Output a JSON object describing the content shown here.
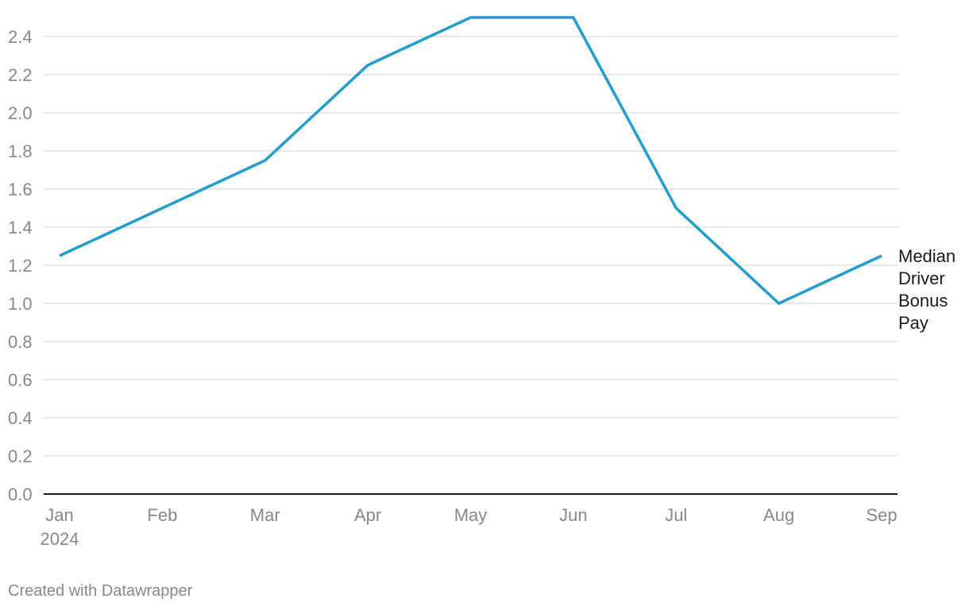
{
  "chart_data": {
    "type": "line",
    "title": "",
    "xlabel": "",
    "ylabel": "",
    "categories": [
      "Jan",
      "Feb",
      "Mar",
      "Apr",
      "May",
      "Jun",
      "Jul",
      "Aug",
      "Sep"
    ],
    "year_label": "2024",
    "ylim": [
      0,
      2.5
    ],
    "yticks": [
      "0.0",
      "0.2",
      "0.4",
      "0.6",
      "0.8",
      "1.0",
      "1.2",
      "1.4",
      "1.6",
      "1.8",
      "2.0",
      "2.2",
      "2.4"
    ],
    "grid": true,
    "series": [
      {
        "name": "Median Driver Bonus Pay",
        "label_lines": [
          "Median",
          "Driver",
          "Bonus",
          "Pay"
        ],
        "color": "#1f9ecf",
        "values": [
          1.25,
          1.5,
          1.75,
          2.25,
          2.5,
          2.5,
          1.5,
          1.0,
          1.25
        ]
      }
    ]
  },
  "footer": "Created with Datawrapper"
}
